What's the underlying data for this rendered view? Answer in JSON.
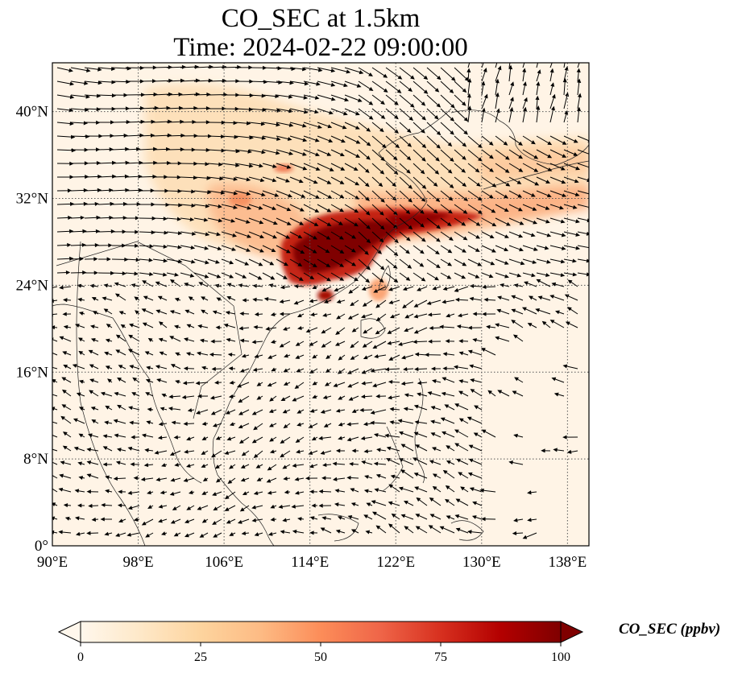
{
  "title_line1": "CO_SEC at 1.5km",
  "title_line2": "Time: 2024-02-22 09:00:00",
  "map": {
    "extent": {
      "lon": [
        90,
        140
      ],
      "lat": [
        0,
        44.5
      ]
    },
    "x_ticks": [
      {
        "value": 90,
        "label": "90°E"
      },
      {
        "value": 98,
        "label": "98°E"
      },
      {
        "value": 106,
        "label": "106°E"
      },
      {
        "value": 114,
        "label": "114°E"
      },
      {
        "value": 122,
        "label": "122°E"
      },
      {
        "value": 130,
        "label": "130°E"
      },
      {
        "value": 138,
        "label": "138°E"
      }
    ],
    "y_ticks": [
      {
        "value": 0,
        "label": "0°"
      },
      {
        "value": 8,
        "label": "8°N"
      },
      {
        "value": 16,
        "label": "16°N"
      },
      {
        "value": 24,
        "label": "24°N"
      },
      {
        "value": 32,
        "label": "32°N"
      },
      {
        "value": 40,
        "label": "40°N"
      }
    ],
    "gridlines": "dotted",
    "field": "CO_SEC",
    "field_units": "ppbv",
    "wind_vectors": true
  },
  "colorbar": {
    "title": "CO_SEC (ppbv)",
    "colormap": "OrRd",
    "range": [
      0,
      100
    ],
    "ticks": [
      {
        "value": 0,
        "label": "0"
      },
      {
        "value": 25,
        "label": "25"
      },
      {
        "value": 50,
        "label": "50"
      },
      {
        "value": 75,
        "label": "75"
      },
      {
        "value": 100,
        "label": "100"
      }
    ],
    "extend": "both",
    "colors": [
      "#fff7ec",
      "#fee8c8",
      "#fdd49e",
      "#fdbb84",
      "#fc8d59",
      "#ef6548",
      "#d7301f",
      "#b30000",
      "#7f0000"
    ]
  }
}
